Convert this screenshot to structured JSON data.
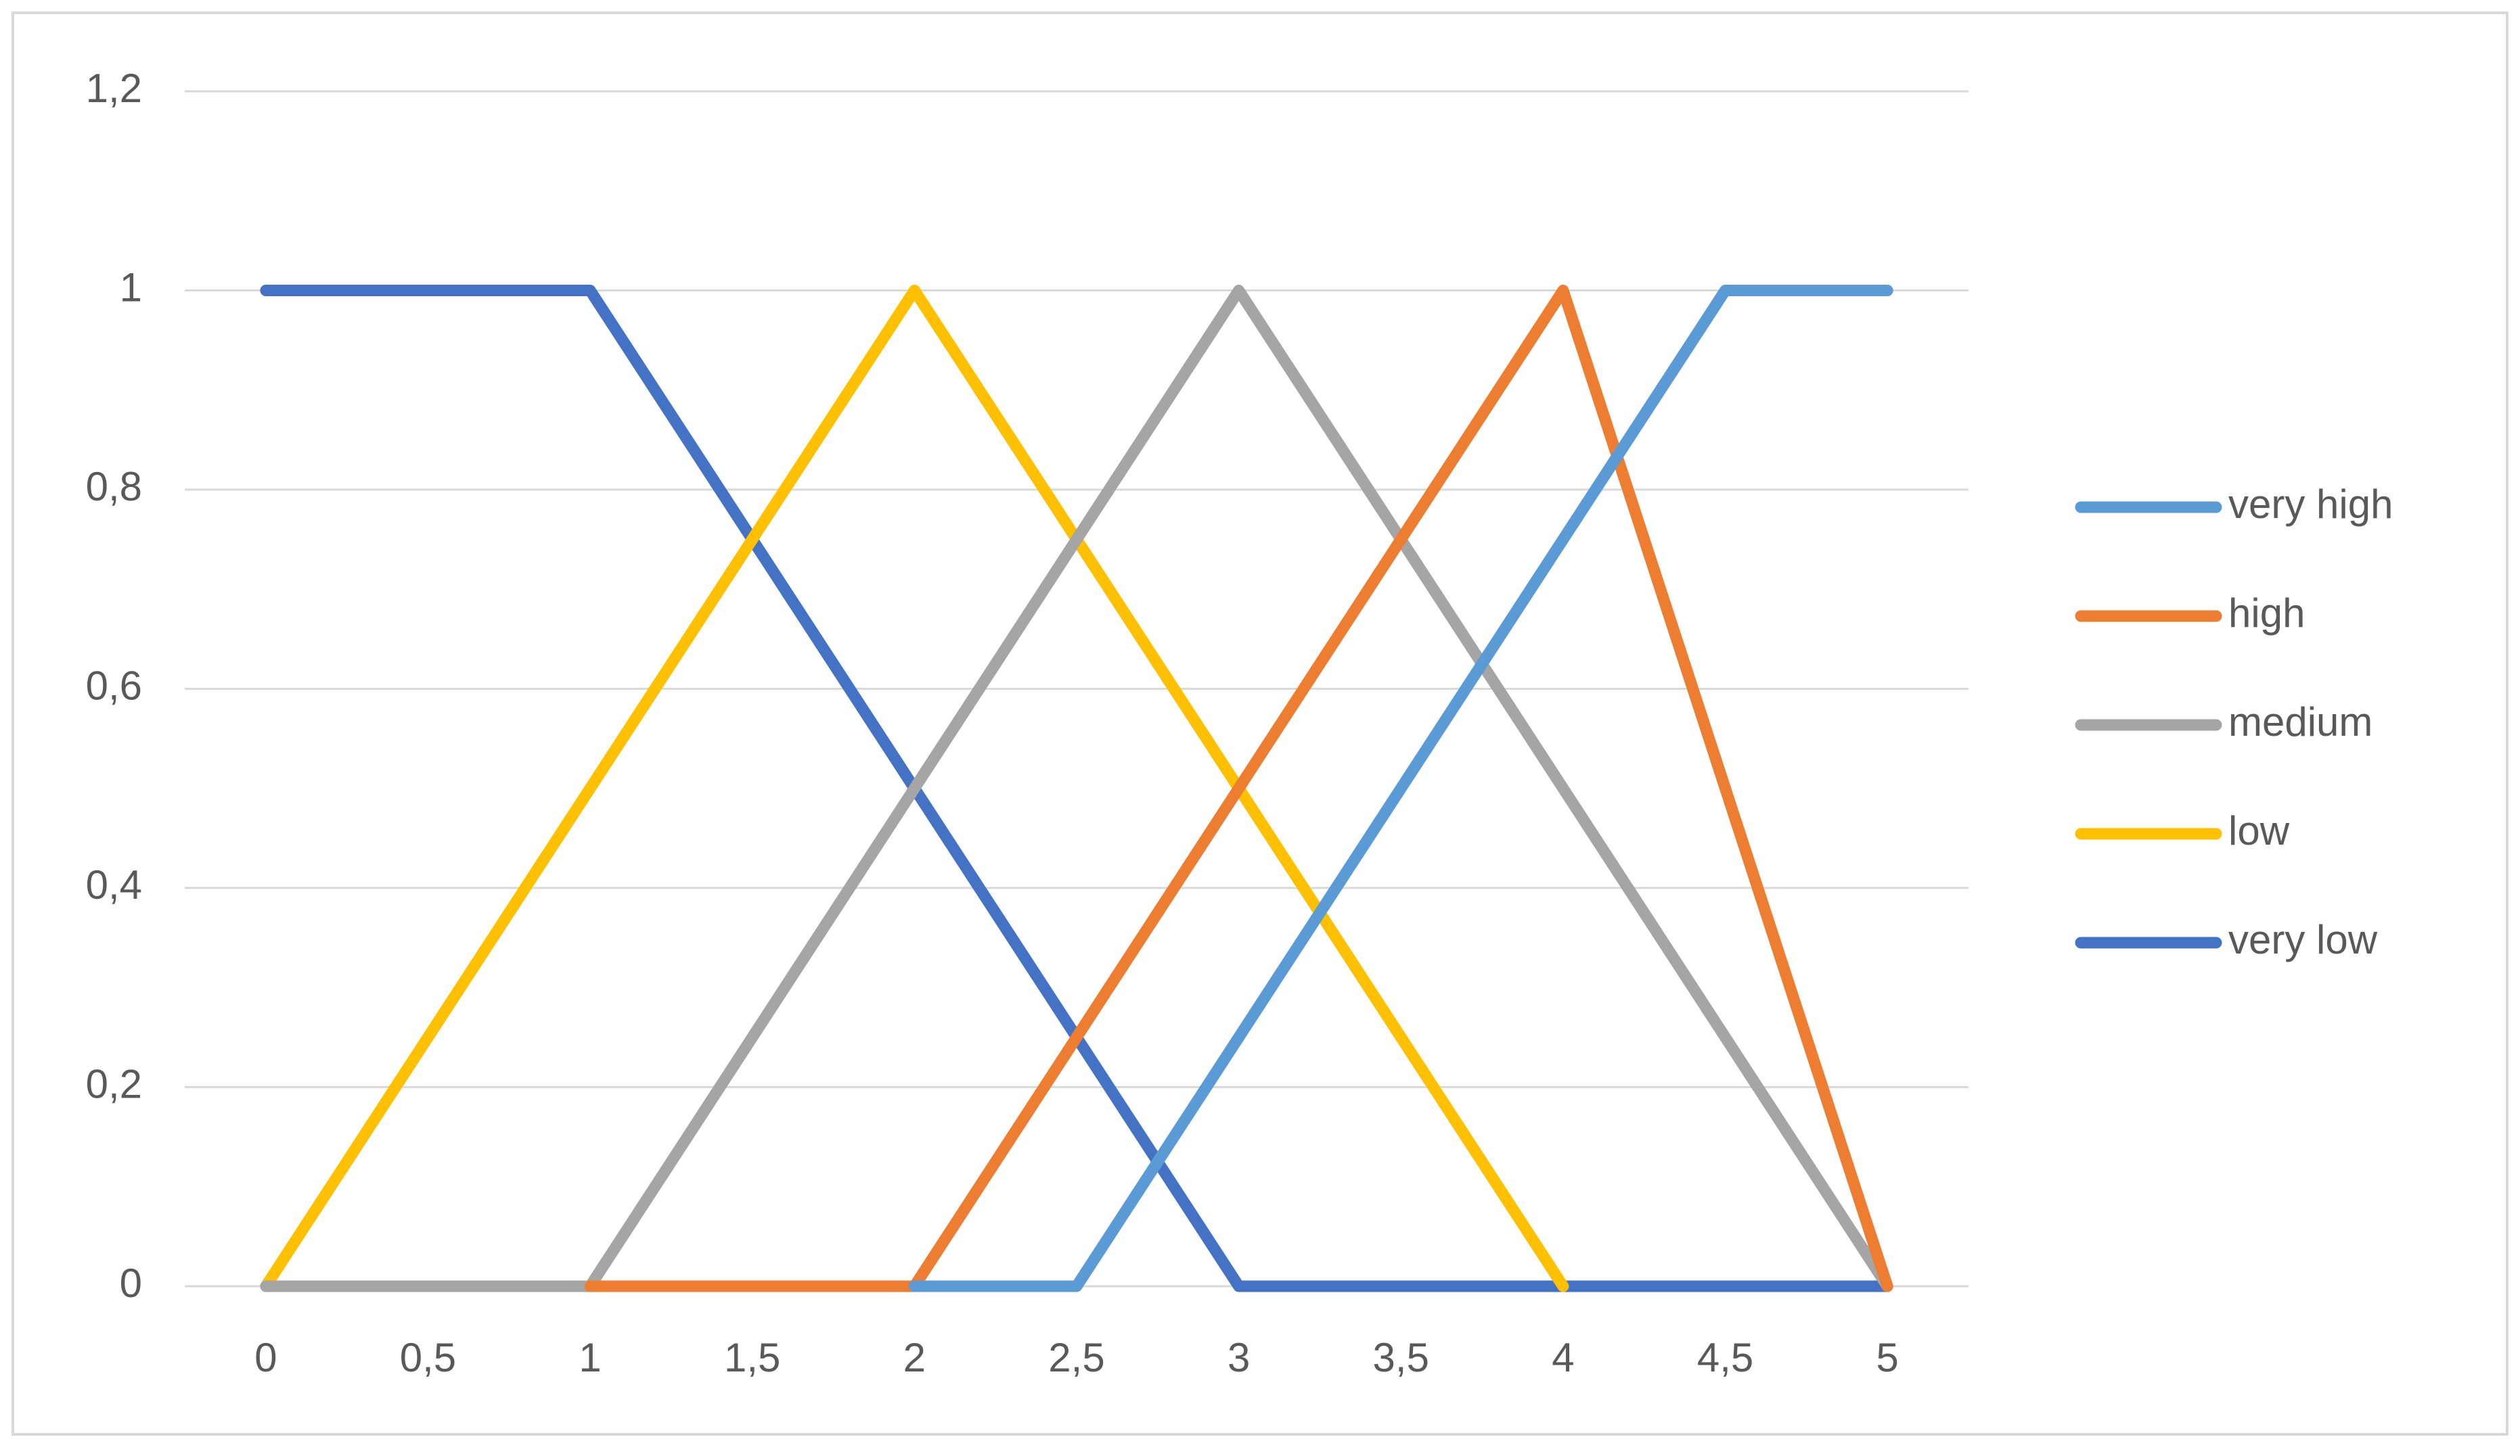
{
  "chart_data": {
    "type": "line",
    "categories": [
      "0",
      "0,5",
      "1",
      "1,5",
      "2",
      "2,5",
      "3",
      "3,5",
      "4",
      "4,5",
      "5"
    ],
    "ylim": [
      0,
      1.2
    ],
    "yticks": [
      0,
      {
        "value": 0.2,
        "label": "0,2"
      },
      {
        "value": 0.4,
        "label": "0,4"
      },
      {
        "value": 0.6,
        "label": "0,6"
      },
      {
        "value": 0.8,
        "label": "0,8"
      },
      1,
      {
        "value": 1.2,
        "label": "1,2"
      }
    ],
    "grid": true,
    "legend": "right",
    "series": [
      {
        "name": "very high",
        "color": "#5b9bd5",
        "values": [
          null,
          null,
          null,
          null,
          0,
          0,
          0.25,
          0.5,
          0.75,
          1,
          1
        ]
      },
      {
        "name": "high",
        "color": "#ed7d31",
        "values": [
          null,
          null,
          0,
          0,
          0,
          0.25,
          0.5,
          0.75,
          1,
          0.5,
          0
        ]
      },
      {
        "name": "medium",
        "color": "#a5a5a5",
        "values": [
          0,
          0,
          0,
          0.25,
          0.5,
          0.75,
          1,
          0.75,
          0.5,
          0.25,
          0
        ]
      },
      {
        "name": "low",
        "color": "#ffc000",
        "values": [
          0,
          0.25,
          0.5,
          0.75,
          1,
          0.75,
          0.5,
          0.25,
          0,
          null,
          null
        ]
      },
      {
        "name": "very low",
        "color": "#4472c4",
        "values": [
          1,
          1,
          1,
          0.75,
          0.5,
          0.25,
          0,
          0,
          0,
          0,
          0
        ]
      }
    ]
  }
}
